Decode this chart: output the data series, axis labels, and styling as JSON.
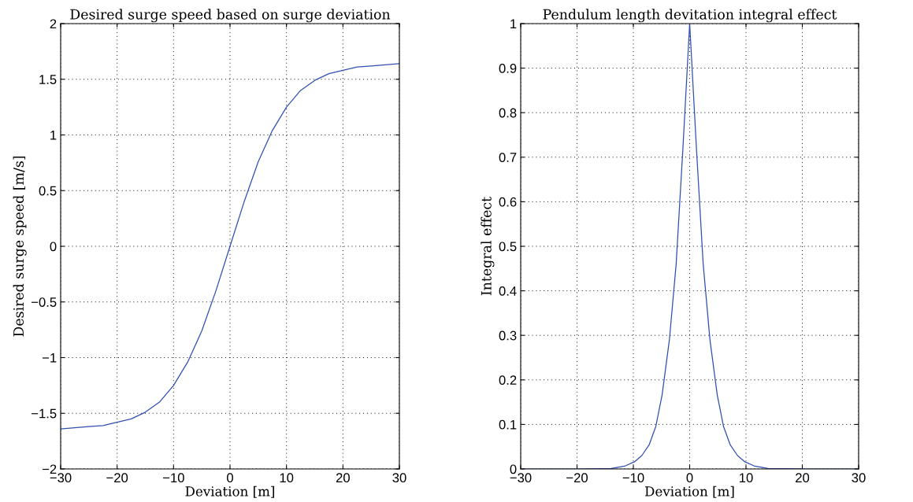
{
  "chart_data": [
    {
      "type": "line",
      "title": "Desired surge speed based on surge deviation",
      "xlabel": "Deviation [m]",
      "ylabel": "Desired surge speed [m/s]",
      "x": [
        -30,
        -27.5,
        -25,
        -22.5,
        -20,
        -17.5,
        -15,
        -12.5,
        -10,
        -7.5,
        -5,
        -2.5,
        0,
        2.5,
        5,
        7.5,
        10,
        12.5,
        15,
        17.5,
        20,
        22.5,
        25,
        27.5,
        30
      ],
      "series": [
        {
          "color": "#3050b0",
          "values": [
            -1.64,
            -1.63,
            -1.62,
            -1.61,
            -1.58,
            -1.55,
            -1.49,
            -1.4,
            -1.25,
            -1.04,
            -0.76,
            -0.4,
            0,
            0.4,
            0.76,
            1.04,
            1.25,
            1.4,
            1.49,
            1.55,
            1.58,
            1.61,
            1.62,
            1.63,
            1.64
          ]
        }
      ],
      "xlim": [
        -30,
        30
      ],
      "xticks": [
        {
          "value": -30,
          "label": "−30"
        },
        {
          "value": -20,
          "label": "−20"
        },
        {
          "value": -10,
          "label": "−10"
        },
        0,
        10,
        20,
        30
      ],
      "ylim": [
        -2,
        2
      ],
      "yticks": [
        {
          "value": -2,
          "label": "−2"
        },
        {
          "value": -1.5,
          "label": "−1.5"
        },
        {
          "value": -1,
          "label": "−1"
        },
        {
          "value": -0.5,
          "label": "−0.5"
        },
        0,
        0.5,
        1,
        1.5,
        2
      ],
      "grid": true,
      "line_style": "solid"
    },
    {
      "type": "line",
      "title": "Pendulum length devitation integral effect",
      "xlabel": "Deviation [m]",
      "ylabel": "Integral effect",
      "x": [
        -30,
        -20,
        -13.9,
        -11.4,
        -9.8,
        -8.5,
        -7.2,
        -6,
        -4.9,
        -3.6,
        -2.4,
        -1.2,
        0,
        1.2,
        2.4,
        3.6,
        4.9,
        6,
        7.2,
        8.5,
        9.8,
        11.4,
        13.9,
        20,
        30
      ],
      "series": [
        {
          "color": "#3050b0",
          "values": [
            0,
            0,
            0.001,
            0.007,
            0.016,
            0.03,
            0.054,
            0.096,
            0.166,
            0.29,
            0.46,
            0.72,
            1,
            0.72,
            0.46,
            0.29,
            0.166,
            0.096,
            0.054,
            0.03,
            0.016,
            0.007,
            0.001,
            0,
            0
          ]
        }
      ],
      "xlim": [
        -30,
        30
      ],
      "xticks": [
        {
          "value": -30,
          "label": "−30"
        },
        {
          "value": -20,
          "label": "−20"
        },
        {
          "value": -10,
          "label": "−10"
        },
        0,
        10,
        20,
        30
      ],
      "ylim": [
        0,
        1
      ],
      "yticks": [
        0,
        0.1,
        0.2,
        0.3,
        0.4,
        0.5,
        0.6,
        0.7,
        0.8,
        0.9,
        1
      ],
      "grid": true,
      "line_style": "solid"
    }
  ]
}
